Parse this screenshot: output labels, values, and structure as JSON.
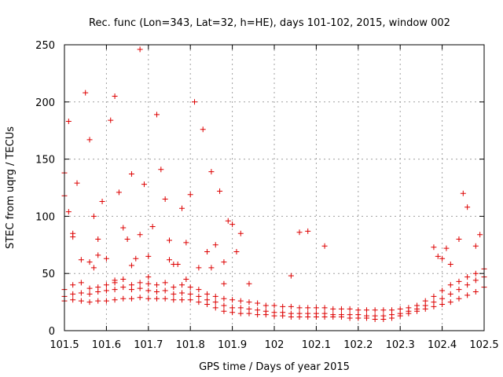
{
  "chart_data": {
    "type": "scatter",
    "title": "Rec. func (Lon=343, Lat=32, h=HE), days 101-102, 2015, window 002",
    "xlabel": "GPS time / Days of year 2015",
    "ylabel": "STEC from uqrg / TECUs",
    "xlim": [
      101.5,
      102.5
    ],
    "ylim": [
      0,
      250
    ],
    "xticks": [
      101.5,
      101.6,
      101.7,
      101.8,
      101.9,
      102.0,
      102.1,
      102.2,
      102.3,
      102.4,
      102.5
    ],
    "xtick_labels": [
      "101.5",
      "101.6",
      "101.7",
      "101.8",
      "101.9",
      "102",
      "102.1",
      "102.2",
      "102.3",
      "102.4",
      "102.5"
    ],
    "yticks": [
      0,
      50,
      100,
      150,
      200,
      250
    ],
    "ytick_labels": [
      "0",
      "50",
      "100",
      "150",
      "200",
      "250"
    ],
    "grid": true,
    "marker": "plus",
    "color": "#dd0000",
    "series": [
      {
        "x": [
          101.5,
          101.5,
          101.51,
          101.51,
          101.52,
          101.52,
          101.53,
          101.54,
          101.55,
          101.56,
          101.56,
          101.57,
          101.58,
          101.58,
          101.59,
          101.6,
          101.61,
          101.62,
          101.63,
          101.64,
          101.65,
          101.66,
          101.67,
          101.68,
          101.69,
          101.7,
          101.71,
          101.72,
          101.73,
          101.74,
          101.75,
          101.76,
          101.77,
          101.78,
          101.79,
          101.8,
          101.81,
          101.82,
          101.83,
          101.84,
          101.85,
          101.86,
          101.87,
          101.88,
          101.89,
          101.9,
          101.91,
          101.92,
          101.94,
          102.04,
          102.06,
          102.08,
          102.12,
          102.38,
          102.39,
          102.4,
          102.41,
          102.42,
          102.44,
          102.45,
          102.46,
          102.48,
          102.49,
          101.57,
          101.62,
          101.66,
          101.68,
          101.7,
          101.75,
          101.79,
          101.85,
          101.88
        ],
        "y": [
          138,
          118,
          183,
          104,
          85,
          82,
          129,
          62,
          208,
          167,
          60,
          100,
          80,
          66,
          113,
          63,
          184,
          205,
          121,
          90,
          80,
          137,
          63,
          84,
          128,
          65,
          91,
          189,
          141,
          115,
          79,
          58,
          58,
          107,
          77,
          119,
          200,
          55,
          176,
          69,
          139,
          75,
          122,
          60,
          96,
          93,
          69,
          85,
          41,
          48,
          86,
          87,
          74,
          73,
          65,
          63,
          72,
          58,
          80,
          120,
          108,
          74,
          84,
          55,
          42,
          57,
          246,
          47,
          62,
          45,
          55,
          41
        ]
      },
      {
        "x": [
          101.5,
          101.52,
          101.54,
          101.56,
          101.58,
          101.6,
          101.62,
          101.64,
          101.66,
          101.68,
          101.7,
          101.72,
          101.74,
          101.76,
          101.78,
          101.8,
          101.82,
          101.84,
          101.86,
          101.88,
          101.9,
          101.92,
          101.94,
          101.96,
          101.98,
          102.0,
          102.02,
          102.04,
          102.06,
          102.08,
          102.1,
          102.12,
          102.14,
          102.16,
          102.18,
          102.2,
          102.22,
          102.24,
          102.26,
          102.28,
          102.3,
          102.32,
          102.34,
          102.36,
          102.38,
          102.4,
          102.42,
          102.44,
          102.46,
          102.48,
          102.5
        ],
        "y": [
          36,
          40,
          42,
          37,
          38,
          40,
          44,
          45,
          40,
          42,
          41,
          40,
          42,
          38,
          40,
          38,
          36,
          32,
          30,
          28,
          27,
          26,
          25,
          24,
          22,
          22,
          21,
          21,
          20,
          20,
          20,
          20,
          19,
          19,
          19,
          18,
          18,
          18,
          18,
          18,
          19,
          20,
          22,
          26,
          30,
          35,
          40,
          43,
          47,
          50,
          54
        ]
      },
      {
        "x": [
          101.5,
          101.52,
          101.54,
          101.56,
          101.58,
          101.6,
          101.62,
          101.64,
          101.66,
          101.68,
          101.7,
          101.72,
          101.74,
          101.76,
          101.78,
          101.8,
          101.82,
          101.84,
          101.86,
          101.88,
          101.9,
          101.92,
          101.94,
          101.96,
          101.98,
          102.0,
          102.02,
          102.04,
          102.06,
          102.08,
          102.1,
          102.12,
          102.14,
          102.16,
          102.18,
          102.2,
          102.22,
          102.24,
          102.26,
          102.28,
          102.3,
          102.32,
          102.34,
          102.36,
          102.38,
          102.4,
          102.42,
          102.44,
          102.46,
          102.48,
          102.5
        ],
        "y": [
          30,
          32,
          33,
          32,
          34,
          35,
          36,
          38,
          36,
          37,
          35,
          34,
          35,
          32,
          33,
          32,
          30,
          27,
          25,
          22,
          20,
          20,
          19,
          18,
          17,
          16,
          16,
          15,
          15,
          15,
          15,
          15,
          14,
          14,
          14,
          14,
          13,
          13,
          13,
          14,
          15,
          17,
          19,
          22,
          25,
          28,
          32,
          36,
          40,
          44,
          47
        ]
      },
      {
        "x": [
          101.5,
          101.52,
          101.54,
          101.56,
          101.58,
          101.6,
          101.62,
          101.64,
          101.66,
          101.68,
          101.7,
          101.72,
          101.74,
          101.76,
          101.78,
          101.8,
          101.82,
          101.84,
          101.86,
          101.88,
          101.9,
          101.92,
          101.94,
          101.96,
          101.98,
          102.0,
          102.02,
          102.04,
          102.06,
          102.08,
          102.1,
          102.12,
          102.14,
          102.16,
          102.18,
          102.2,
          102.22,
          102.24,
          102.26,
          102.28,
          102.3,
          102.32,
          102.34,
          102.36,
          102.38,
          102.4,
          102.42,
          102.44,
          102.46,
          102.48,
          102.5
        ],
        "y": [
          26,
          27,
          26,
          25,
          26,
          26,
          27,
          28,
          28,
          29,
          28,
          28,
          28,
          27,
          27,
          27,
          25,
          23,
          20,
          17,
          16,
          15,
          15,
          14,
          14,
          13,
          13,
          12,
          12,
          12,
          12,
          12,
          12,
          12,
          11,
          11,
          11,
          10,
          10,
          11,
          13,
          15,
          17,
          19,
          21,
          23,
          25,
          28,
          31,
          34,
          38
        ]
      }
    ]
  }
}
